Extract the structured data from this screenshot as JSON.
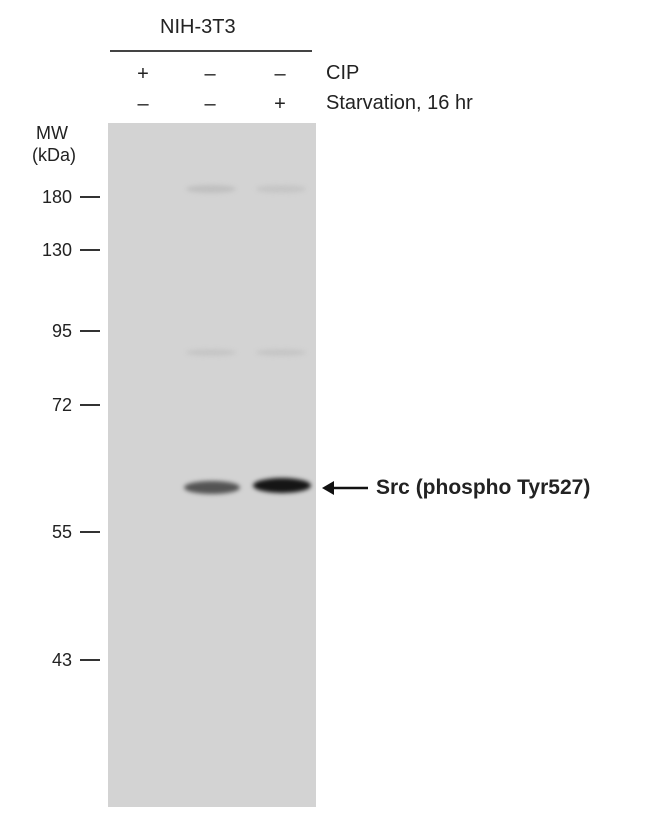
{
  "cell_line": "NIH-3T3",
  "conditions": [
    {
      "label": "CIP",
      "lanes": [
        "+",
        "–",
        "–"
      ]
    },
    {
      "label": "Starvation, 16 hr",
      "lanes": [
        "–",
        "–",
        "+"
      ]
    }
  ],
  "mw_header": [
    "MW",
    "(kDa)"
  ],
  "mw_markers": [
    "180",
    "130",
    "95",
    "72",
    "55",
    "43"
  ],
  "target_label": "Src (phospho Tyr527)",
  "band_intensity": [
    0,
    0.6,
    0.9
  ]
}
